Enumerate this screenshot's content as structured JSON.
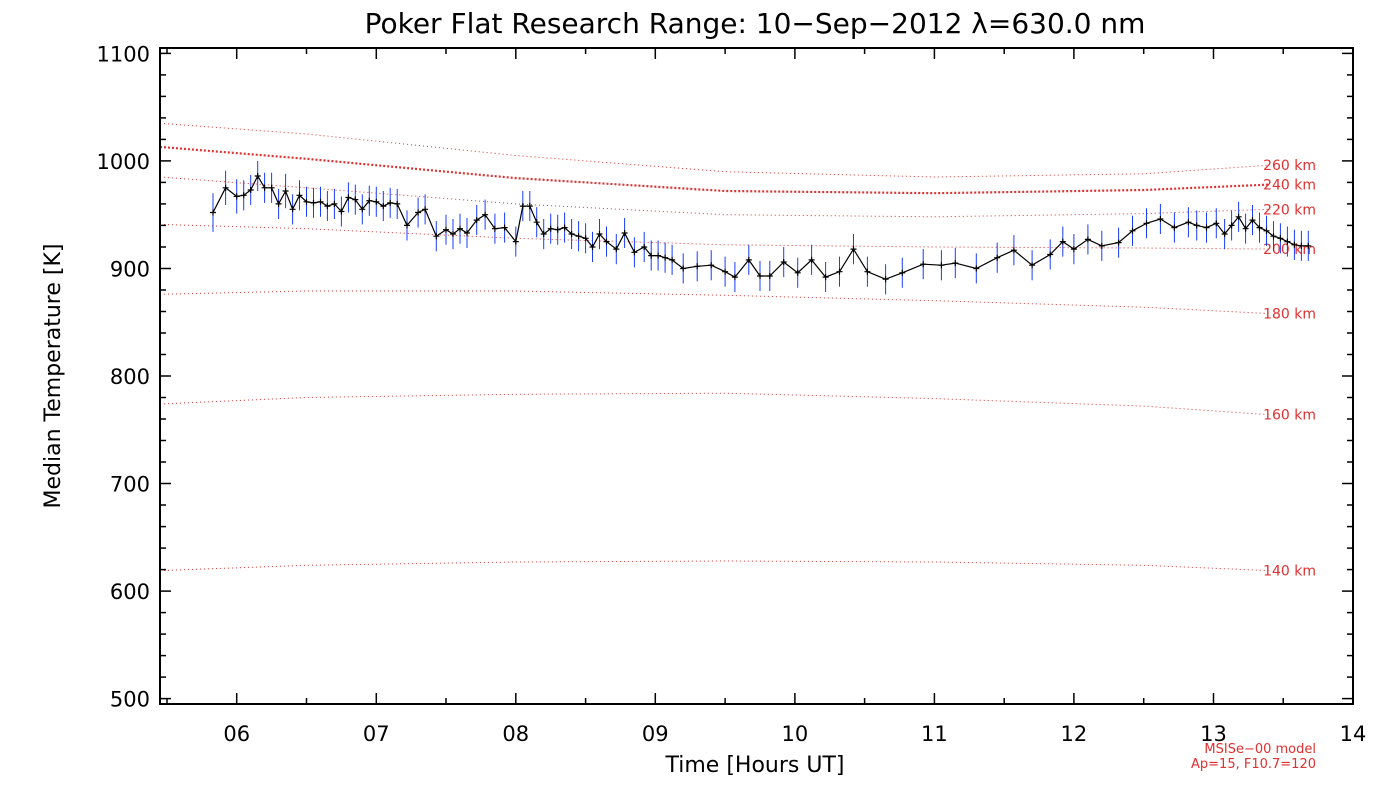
{
  "chart_data": {
    "type": "line",
    "title": "Poker Flat Research Range: 10−Sep−2012 λ=630.0 nm",
    "xlabel": "Time [Hours UT]",
    "ylabel": "Median Temperature [K]",
    "xlim": [
      5.45,
      14.0
    ],
    "ylim": [
      495,
      1105
    ],
    "x_ticks": [
      6,
      7,
      8,
      9,
      10,
      11,
      12,
      13,
      14
    ],
    "x_tick_labels": [
      "06",
      "07",
      "08",
      "09",
      "10",
      "11",
      "12",
      "13",
      "14"
    ],
    "y_ticks": [
      500,
      600,
      700,
      800,
      900,
      1000,
      1100
    ],
    "y_tick_labels": [
      "500",
      "600",
      "700",
      "800",
      "900",
      "1000",
      "1100"
    ],
    "grid": false,
    "series": [
      {
        "color": "#000000",
        "error_color": "#1a3cff",
        "x": [
          5.83,
          5.92,
          6.0,
          6.05,
          6.1,
          6.15,
          6.2,
          6.25,
          6.3,
          6.35,
          6.4,
          6.45,
          6.5,
          6.55,
          6.6,
          6.65,
          6.7,
          6.75,
          6.8,
          6.85,
          6.9,
          6.95,
          7.0,
          7.05,
          7.1,
          7.15,
          7.22,
          7.3,
          7.35,
          7.43,
          7.5,
          7.55,
          7.6,
          7.65,
          7.72,
          7.78,
          7.85,
          7.92,
          8.0,
          8.05,
          8.1,
          8.15,
          8.2,
          8.25,
          8.3,
          8.35,
          8.4,
          8.45,
          8.5,
          8.55,
          8.6,
          8.65,
          8.72,
          8.78,
          8.85,
          8.92,
          8.97,
          9.02,
          9.07,
          9.12,
          9.2,
          9.3,
          9.4,
          9.5,
          9.57,
          9.67,
          9.75,
          9.82,
          9.92,
          10.02,
          10.12,
          10.22,
          10.32,
          10.42,
          10.52,
          10.65,
          10.77,
          10.92,
          11.05,
          11.15,
          11.3,
          11.45,
          11.57,
          11.7,
          11.83,
          11.92,
          12.0,
          12.1,
          12.2,
          12.32,
          12.42,
          12.52,
          12.62,
          12.72,
          12.82,
          12.88,
          12.95,
          13.02,
          13.08,
          13.13,
          13.18,
          13.23,
          13.28,
          13.33,
          13.38,
          13.43,
          13.48,
          13.53,
          13.58,
          13.63,
          13.68
        ],
        "y": [
          952,
          975,
          967,
          968,
          973,
          986,
          975,
          975,
          960,
          972,
          955,
          968,
          962,
          961,
          962,
          958,
          960,
          953,
          966,
          964,
          955,
          963,
          962,
          958,
          961,
          960,
          940,
          952,
          955,
          930,
          936,
          932,
          937,
          933,
          945,
          950,
          937,
          938,
          925,
          958,
          958,
          943,
          932,
          937,
          936,
          938,
          932,
          930,
          928,
          920,
          932,
          925,
          918,
          933,
          915,
          920,
          912,
          912,
          910,
          908,
          900,
          902,
          903,
          897,
          892,
          908,
          893,
          893,
          906,
          896,
          908,
          892,
          897,
          918,
          897,
          890,
          896,
          904,
          903,
          905,
          900,
          910,
          917,
          903,
          913,
          925,
          918,
          927,
          921,
          924,
          935,
          942,
          946,
          938,
          943,
          940,
          938,
          942,
          932,
          940,
          948,
          937,
          945,
          938,
          935,
          930,
          928,
          925,
          922,
          921,
          921
        ],
        "yerr": [
          18,
          16,
          16,
          14,
          14,
          14,
          14,
          14,
          14,
          16,
          14,
          14,
          14,
          14,
          14,
          14,
          14,
          14,
          14,
          14,
          14,
          14,
          14,
          14,
          14,
          14,
          14,
          14,
          14,
          14,
          14,
          14,
          14,
          14,
          14,
          14,
          14,
          14,
          14,
          14,
          14,
          14,
          14,
          14,
          14,
          14,
          14,
          14,
          14,
          14,
          14,
          14,
          14,
          14,
          14,
          14,
          14,
          14,
          14,
          14,
          14,
          14,
          14,
          14,
          14,
          14,
          14,
          14,
          14,
          14,
          14,
          14,
          14,
          14,
          14,
          14,
          14,
          14,
          14,
          14,
          14,
          14,
          14,
          14,
          14,
          14,
          14,
          14,
          14,
          14,
          14,
          14,
          14,
          14,
          14,
          14,
          14,
          14,
          14,
          14,
          14,
          14,
          14,
          14,
          14,
          14,
          14,
          14,
          14,
          14,
          14
        ]
      }
    ],
    "reference_lines": [
      {
        "label": "260 km",
        "color": "#e03030",
        "x": [
          5.45,
          6.5,
          8.0,
          9.5,
          11.0,
          12.5,
          13.4
        ],
        "y": [
          1035,
          1025,
          1005,
          990,
          985,
          988,
          996
        ]
      },
      {
        "label": "240 km",
        "color": "#e03030",
        "emphasis": true,
        "x": [
          5.45,
          6.5,
          8.0,
          9.5,
          11.0,
          12.5,
          13.4
        ],
        "y": [
          1013,
          1002,
          984,
          972,
          970,
          973,
          978
        ]
      },
      {
        "label": "220 km",
        "color": "#e03030",
        "x": [
          5.45,
          6.5,
          8.0,
          9.5,
          11.0,
          12.5,
          13.4
        ],
        "y": [
          985,
          975,
          960,
          950,
          948,
          951,
          955
        ]
      },
      {
        "label": "200 km",
        "color": "#e03030",
        "x": [
          5.45,
          6.5,
          8.0,
          9.5,
          11.0,
          12.5,
          13.4
        ],
        "y": [
          941,
          937,
          928,
          922,
          920,
          919,
          918
        ]
      },
      {
        "label": "180 km",
        "color": "#e03030",
        "x": [
          5.45,
          6.5,
          8.0,
          9.5,
          11.0,
          12.5,
          13.4
        ],
        "y": [
          876,
          879,
          879,
          875,
          870,
          864,
          858
        ]
      },
      {
        "label": "160 km",
        "color": "#e03030",
        "x": [
          5.45,
          6.5,
          8.0,
          9.5,
          11.0,
          12.5,
          13.4
        ],
        "y": [
          774,
          780,
          783,
          784,
          779,
          772,
          764
        ]
      },
      {
        "label": "140 km",
        "color": "#e03030",
        "x": [
          5.45,
          6.5,
          8.0,
          9.5,
          11.0,
          12.5,
          13.4
        ],
        "y": [
          619,
          624,
          627,
          628,
          627,
          624,
          619
        ]
      }
    ],
    "annotations": [
      "MSISe−00 model",
      "Ap=15, F10.7=120"
    ]
  }
}
